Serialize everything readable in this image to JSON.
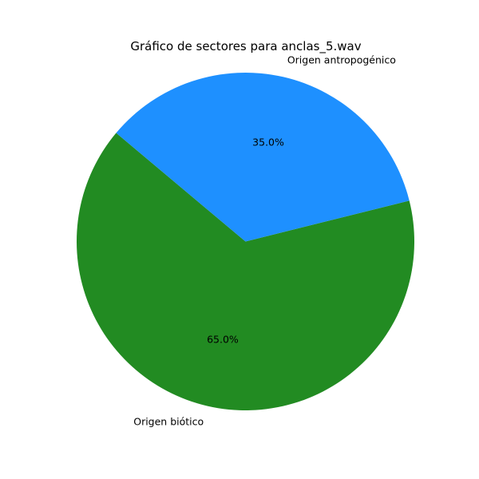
{
  "chart_data": {
    "type": "pie",
    "title": "Gráfico de sectores para anclas_5.wav",
    "slices": [
      {
        "label": "Origen biótico",
        "value": 65.0,
        "percent_label": "65.0%",
        "color": "#228b22"
      },
      {
        "label": "Origen antropogénico",
        "value": 35.0,
        "percent_label": "35.0%",
        "color": "#1e90ff"
      }
    ],
    "start_angle_deg": 140,
    "direction": "counterclockwise",
    "legend": "none"
  }
}
